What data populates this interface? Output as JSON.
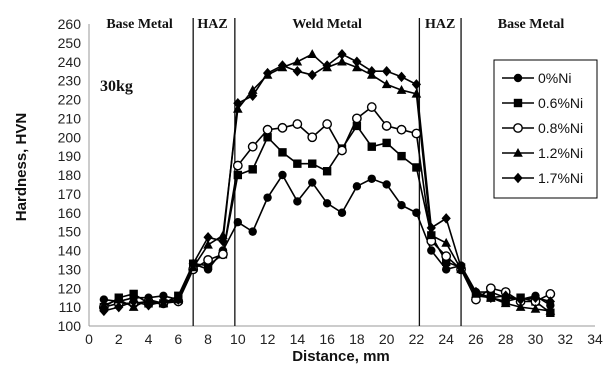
{
  "chart_data": {
    "type": "line",
    "title": "",
    "xlabel": "Distance, mm",
    "ylabel": "Hardness, HVN",
    "xlim": [
      0,
      34
    ],
    "ylim": [
      100,
      260
    ],
    "xticks": [
      "0",
      "2",
      "4",
      "6",
      "8",
      "10",
      "12",
      "14",
      "16",
      "18",
      "20",
      "22",
      "24",
      "26",
      "28",
      "30",
      "32",
      "34"
    ],
    "yticks": [
      "100",
      "110",
      "120",
      "130",
      "140",
      "150",
      "160",
      "170",
      "180",
      "190",
      "200",
      "210",
      "220",
      "230",
      "240",
      "250",
      "260"
    ],
    "grid": false,
    "legend_position": "right",
    "annotations": [
      "30kg"
    ],
    "zones": [
      {
        "label": "Base Metal",
        "x_center": 3.4
      },
      {
        "label": "HAZ",
        "x_center": 8.3
      },
      {
        "label": "Weld Metal",
        "x_center": 16.0
      },
      {
        "label": "HAZ",
        "x_center": 23.6
      },
      {
        "label": "Base Metal",
        "x_center": 29.7
      }
    ],
    "zone_boundaries": [
      7,
      9.8,
      22.2,
      25
    ],
    "x": [
      1,
      2,
      3,
      4,
      5,
      6,
      7,
      8,
      9,
      10,
      11,
      12,
      13,
      14,
      15,
      16,
      17,
      18,
      19,
      20,
      21,
      22,
      23,
      24,
      25,
      26,
      27,
      28,
      29,
      30,
      31
    ],
    "series": [
      {
        "name": "0%Ni",
        "marker": "circle-filled",
        "values": [
          114,
          113,
          115,
          115,
          116,
          114,
          133,
          130,
          140,
          155,
          150,
          168,
          180,
          166,
          176,
          165,
          160,
          174,
          178,
          175,
          164,
          160,
          140,
          130,
          132,
          118,
          118,
          115,
          114,
          116,
          111
        ]
      },
      {
        "name": "0.6%Ni",
        "marker": "square-filled",
        "values": [
          110,
          115,
          117,
          112,
          112,
          116,
          133,
          132,
          138,
          180,
          183,
          200,
          192,
          186,
          186,
          182,
          194,
          206,
          195,
          197,
          190,
          184,
          148,
          134,
          131,
          116,
          115,
          113,
          115,
          113,
          107
        ]
      },
      {
        "name": "0.8%Ni",
        "marker": "circle-open",
        "values": [
          110,
          112,
          112,
          113,
          112,
          113,
          130,
          135,
          138,
          185,
          195,
          204,
          205,
          207,
          200,
          207,
          193,
          210,
          216,
          206,
          204,
          202,
          145,
          137,
          130,
          114,
          120,
          118,
          113,
          113,
          117
        ]
      },
      {
        "name": "1.2%Ni",
        "marker": "triangle-filled",
        "values": [
          111,
          114,
          110,
          114,
          112,
          114,
          131,
          143,
          148,
          215,
          225,
          233,
          237,
          240,
          244,
          237,
          240,
          237,
          233,
          228,
          225,
          223,
          148,
          144,
          130,
          117,
          115,
          112,
          110,
          109,
          108
        ]
      },
      {
        "name": "1.7%Ni",
        "marker": "diamond-filled",
        "values": [
          108,
          110,
          113,
          111,
          113,
          114,
          133,
          147,
          145,
          218,
          222,
          234,
          238,
          235,
          233,
          238,
          244,
          240,
          235,
          235,
          232,
          228,
          152,
          157,
          131,
          118,
          115,
          116,
          114,
          115,
          113
        ]
      }
    ]
  }
}
